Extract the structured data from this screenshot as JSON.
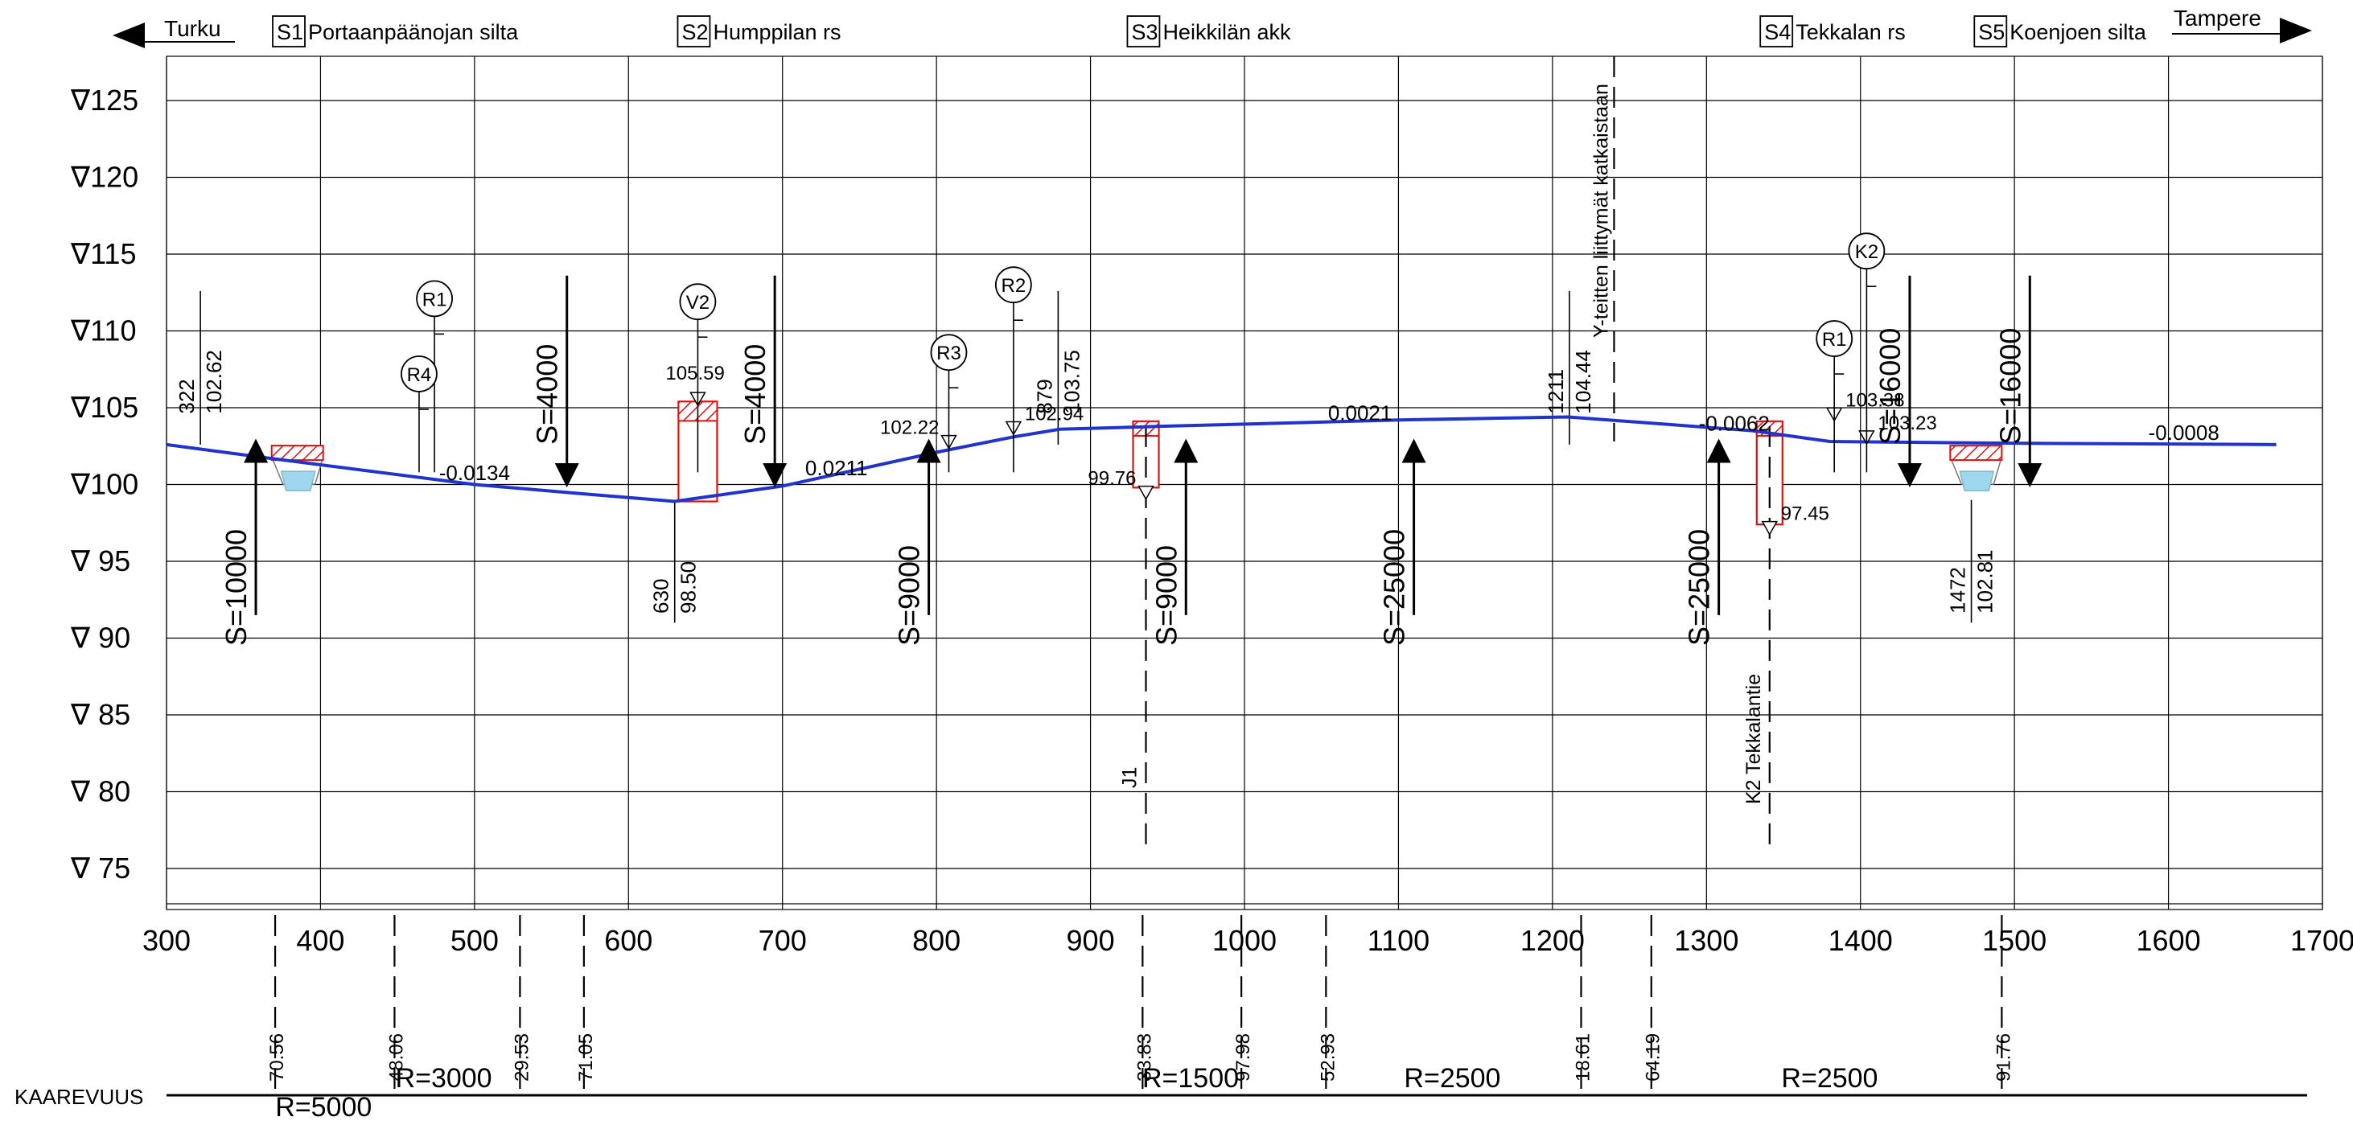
{
  "header": {
    "direction_left": "Turku",
    "direction_right": "Tampere",
    "stations": [
      {
        "code": "S1",
        "name": "Portaanpäänojan silta",
        "at": 370
      },
      {
        "code": "S2",
        "name": "Humppilan rs",
        "at": 633
      },
      {
        "code": "S3",
        "name": "Heikkilän akk",
        "at": 925
      },
      {
        "code": "S4",
        "name": "Tekkalan rs",
        "at": 1336
      },
      {
        "code": "S5",
        "name": "Koenjoen silta",
        "at": 1475
      }
    ]
  },
  "elevation_axis": {
    "labels": [
      "∇125",
      "∇120",
      "∇115",
      "∇110",
      "∇105",
      "∇100",
      "∇ 95",
      "∇ 90",
      "∇ 85",
      "∇ 80",
      "∇ 75"
    ],
    "levels": [
      125,
      120,
      115,
      110,
      105,
      100,
      95,
      90,
      85,
      80,
      75
    ]
  },
  "chainage_axis": {
    "labels": [
      "300",
      "400",
      "500",
      "600",
      "700",
      "800",
      "900",
      "1000",
      "1100",
      "1200",
      "1300",
      "1400",
      "1500",
      "1600",
      "1700"
    ],
    "values": [
      300,
      400,
      500,
      600,
      700,
      800,
      900,
      1000,
      1100,
      1200,
      1300,
      1400,
      1500,
      1600,
      1700
    ]
  },
  "profile": {
    "points": [
      [
        300,
        102.6
      ],
      [
        360,
        101.8
      ],
      [
        500,
        100.0
      ],
      [
        570,
        99.4
      ],
      [
        630,
        98.9
      ],
      [
        700,
        99.9
      ],
      [
        800,
        102.1
      ],
      [
        850,
        103.1
      ],
      [
        880,
        103.6
      ],
      [
        950,
        103.8
      ],
      [
        1100,
        104.2
      ],
      [
        1210,
        104.4
      ],
      [
        1330,
        103.5
      ],
      [
        1380,
        102.8
      ],
      [
        1480,
        102.7
      ],
      [
        1670,
        102.6
      ]
    ],
    "grades": [
      {
        "text": "-0.0134",
        "at": 500,
        "elev": 100.3
      },
      {
        "text": "0.0211",
        "at": 735,
        "elev": 100.6
      },
      {
        "text": "0.0021",
        "at": 1075,
        "elev": 104.2
      },
      {
        "text": "-0.0062",
        "at": 1318,
        "elev": 103.5
      },
      {
        "text": "-0.0008",
        "at": 1610,
        "elev": 102.9
      }
    ],
    "vertical_curves": [
      {
        "text": "S=10000",
        "at": 358,
        "dir": "up"
      },
      {
        "text": "S=4000",
        "at": 560,
        "dir": "down"
      },
      {
        "text": "S=4000",
        "at": 695,
        "dir": "down"
      },
      {
        "text": "S=9000",
        "at": 795,
        "dir": "up"
      },
      {
        "text": "S=9000",
        "at": 962,
        "dir": "up"
      },
      {
        "text": "S=25000",
        "at": 1110,
        "dir": "up"
      },
      {
        "text": "S=25000",
        "at": 1308,
        "dir": "up"
      },
      {
        "text": "S=16000",
        "at": 1432,
        "dir": "down"
      },
      {
        "text": "S=16000",
        "at": 1510,
        "dir": "down"
      }
    ],
    "vertical_breakpoints": [
      {
        "station": "322",
        "elev": "102.62",
        "at": 322,
        "side": "up"
      },
      {
        "station": "630",
        "elev": "98.50",
        "at": 630,
        "side": "down"
      },
      {
        "station": "879",
        "elev": "103.75",
        "at": 879,
        "side": "up"
      },
      {
        "station": "1211",
        "elev": "104.44",
        "at": 1211,
        "side": "up"
      },
      {
        "station": "1472",
        "elev": "102.81",
        "at": 1472,
        "side": "down"
      }
    ],
    "level_marks": [
      {
        "text": "105.59",
        "at": 645,
        "elev": 106.3
      },
      {
        "text": "102.22",
        "at": 808,
        "elev": 103.5
      },
      {
        "text": "102.94",
        "at": 850,
        "elev": 104.4
      },
      {
        "text": "99.76",
        "at": 936,
        "elev": 100.2
      },
      {
        "text": "97.45",
        "at": 1341,
        "elev": 97.9
      },
      {
        "text": "103.38",
        "at": 1383,
        "elev": 105.3
      },
      {
        "text": "103.23",
        "at": 1404,
        "elev": 103.8
      }
    ],
    "symbols": [
      {
        "label": "R1",
        "at": 474,
        "top": 112.1
      },
      {
        "label": "R4",
        "at": 464,
        "top": 107.2
      },
      {
        "label": "V2",
        "at": 645,
        "top": 111.9
      },
      {
        "label": "R3",
        "at": 808,
        "top": 108.6
      },
      {
        "label": "R2",
        "at": 850,
        "top": 113.0
      },
      {
        "label": "R1",
        "at": 1383,
        "top": 109.5
      },
      {
        "label": "K2",
        "at": 1404,
        "top": 115.2
      }
    ],
    "structures": [
      {
        "at": 645,
        "kind": "bridge"
      },
      {
        "at": 936,
        "kind": "culvert"
      },
      {
        "at": 1341,
        "kind": "culvert"
      }
    ],
    "streams": [
      {
        "at": 385
      },
      {
        "at": 1475
      }
    ],
    "crossings": [
      {
        "text": "J1",
        "at": 936
      },
      {
        "text": "K2 Tekkalantie",
        "at": 1341
      }
    ],
    "note": {
      "text": "Y-teitten liittymät katkaistaan",
      "at": 1240
    }
  },
  "kaarevuus": {
    "label": "KAAREVUUS",
    "ticks": [
      {
        "text": "70.56",
        "at": 370.56
      },
      {
        "text": "48.06",
        "at": 448.06
      },
      {
        "text": "29.53",
        "at": 529.53
      },
      {
        "text": "71.05",
        "at": 571.05
      },
      {
        "text": "33.83",
        "at": 933.83
      },
      {
        "text": "97.98",
        "at": 997.98
      },
      {
        "text": "52.93",
        "at": 1052.93
      },
      {
        "text": "18.61",
        "at": 1218.61
      },
      {
        "text": "64.19",
        "at": 1264.19
      },
      {
        "text": "91.76",
        "at": 1491.76
      }
    ],
    "radii": [
      {
        "text": "R=5000",
        "at": 402,
        "row": "below"
      },
      {
        "text": "R=3000",
        "at": 480,
        "row": "above"
      },
      {
        "text": "R=1500",
        "at": 965,
        "row": "above"
      },
      {
        "text": "R=2500",
        "at": 1135,
        "row": "above"
      },
      {
        "text": "R=2500",
        "at": 1380,
        "row": "above"
      }
    ]
  }
}
